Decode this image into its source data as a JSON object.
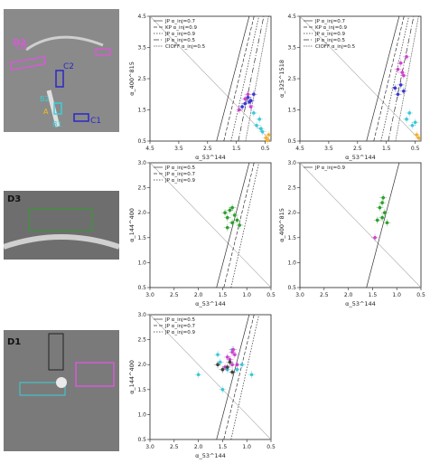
{
  "images": [
    {
      "label": "D2",
      "regions": [
        {
          "text": "D2",
          "color": "#d65ad8"
        },
        {
          "text": "C2",
          "color": "#2a28c8"
        },
        {
          "text": "B2",
          "color": "#3ad0d8"
        },
        {
          "text": "A",
          "color": "#f0c020"
        },
        {
          "text": "B1",
          "color": "#3ad0d8"
        },
        {
          "text": "C1",
          "color": "#2a28c8"
        }
      ]
    },
    {
      "label": "D3"
    },
    {
      "label": "D1"
    }
  ],
  "chart_data": [
    {
      "id": "p1",
      "type": "scatter",
      "xlabel": "α_53^144",
      "ylabel": "α_400^815",
      "xlim": [
        4.5,
        0.3
      ],
      "ylim": [
        4.5,
        0.5
      ],
      "xticks": [
        "4.5",
        "3.5",
        "2.5",
        "1.5",
        "0.5"
      ],
      "yticks": [
        "0.5",
        "1.5",
        "2.5",
        "3.5",
        "4.5"
      ],
      "legend": [
        "JP α_inj=0.7",
        "KP α_inj=0.9",
        "JP α_inj=0.9",
        "JP α_inj=0.5",
        "CIOFF α_inj=0.5"
      ],
      "legend_placement": "top-left",
      "series": [
        {
          "color": "#f0b030",
          "points": [
            [
              0.42,
              0.52
            ],
            [
              0.48,
              0.6
            ],
            [
              0.38,
              0.7
            ]
          ]
        },
        {
          "color": "#3cc8d8",
          "points": [
            [
              0.6,
              0.8
            ],
            [
              0.8,
              1.0
            ],
            [
              0.7,
              1.2
            ],
            [
              0.9,
              1.4
            ],
            [
              0.65,
              0.9
            ]
          ]
        },
        {
          "color": "#3a38c8",
          "points": [
            [
              1.2,
              1.7
            ],
            [
              1.0,
              1.8
            ],
            [
              1.1,
              1.9
            ],
            [
              0.9,
              2.0
            ],
            [
              1.3,
              1.6
            ],
            [
              1.05,
              1.75
            ]
          ]
        },
        {
          "color": "#cc44cc",
          "points": [
            [
              1.4,
              1.5
            ],
            [
              1.1,
              2.0
            ],
            [
              1.2,
              1.85
            ],
            [
              1.0,
              1.6
            ]
          ]
        }
      ]
    },
    {
      "id": "p2",
      "type": "scatter",
      "xlabel": "α_53^144",
      "ylabel": "α_325^1518",
      "xlim": [
        4.5,
        0.3
      ],
      "ylim": [
        4.5,
        0.5
      ],
      "xticks": [
        "4.5",
        "3.5",
        "2.5",
        "1.5",
        "0.5"
      ],
      "yticks": [
        "0.5",
        "1.5",
        "2.5",
        "3.5",
        "4.5"
      ],
      "legend": [
        "JP α_inj=0.7",
        "KP α_inj=0.9",
        "JP α_inj=0.9",
        "JP α_inj=0.5",
        "CIOFF α_inj=0.5"
      ],
      "legend_placement": "top-left",
      "series": [
        {
          "color": "#f0b030",
          "points": [
            [
              0.38,
              0.6
            ],
            [
              0.45,
              0.7
            ]
          ]
        },
        {
          "color": "#3cc8d8",
          "points": [
            [
              0.6,
              1.0
            ],
            [
              0.8,
              1.2
            ],
            [
              0.7,
              1.4
            ],
            [
              0.5,
              1.1
            ]
          ]
        },
        {
          "color": "#3a38c8",
          "points": [
            [
              1.1,
              2.0
            ],
            [
              1.0,
              2.3
            ],
            [
              0.9,
              2.1
            ],
            [
              1.2,
              2.2
            ]
          ]
        },
        {
          "color": "#cc44cc",
          "points": [
            [
              0.9,
              2.6
            ],
            [
              1.0,
              3.0
            ],
            [
              1.1,
              2.8
            ],
            [
              0.8,
              3.2
            ],
            [
              0.95,
              2.7
            ]
          ]
        }
      ]
    },
    {
      "id": "p3",
      "type": "scatter",
      "xlabel": "α_53^144",
      "ylabel": "α_144^400",
      "xlim": [
        3.0,
        0.5
      ],
      "ylim": [
        3.0,
        0.5
      ],
      "xticks": [
        "3.0",
        "2.5",
        "2.0",
        "1.5",
        "1.0",
        "0.5"
      ],
      "yticks": [
        "0.5",
        "1.0",
        "1.5",
        "2.0",
        "2.5",
        "3.0"
      ],
      "legend": [
        "JP α_inj=0.5",
        "JP α_inj=0.7",
        "JP α_inj=0.9"
      ],
      "legend_placement": "top-left",
      "series": [
        {
          "color": "#2e9e2e",
          "points": [
            [
              1.3,
              1.8
            ],
            [
              1.4,
              1.9
            ],
            [
              1.25,
              1.95
            ],
            [
              1.35,
              2.05
            ],
            [
              1.2,
              1.85
            ],
            [
              1.45,
              2.0
            ],
            [
              1.3,
              2.1
            ],
            [
              1.15,
              1.75
            ],
            [
              1.4,
              1.7
            ]
          ]
        }
      ]
    },
    {
      "id": "p4",
      "type": "scatter",
      "xlabel": "α_53^144",
      "ylabel": "α_400^815",
      "xlim": [
        3.0,
        0.5
      ],
      "ylim": [
        3.0,
        0.5
      ],
      "xticks": [
        "3.0",
        "2.5",
        "2.0",
        "1.5",
        "1.0",
        "0.5"
      ],
      "yticks": [
        "0.5",
        "1.0",
        "1.5",
        "2.0",
        "2.5",
        "3.0"
      ],
      "legend": [
        "JP α_inj=0.9"
      ],
      "legend_placement": "top-left",
      "series": [
        {
          "color": "#2e9e2e",
          "points": [
            [
              1.3,
              1.9
            ],
            [
              1.25,
              2.0
            ],
            [
              1.35,
              2.1
            ],
            [
              1.2,
              1.8
            ],
            [
              1.3,
              2.2
            ],
            [
              1.4,
              1.85
            ],
            [
              1.28,
              2.3
            ]
          ]
        },
        {
          "color": "#cc44cc",
          "points": [
            [
              1.45,
              1.5
            ]
          ]
        }
      ]
    },
    {
      "id": "p5",
      "type": "scatter",
      "xlabel": "α_53^144",
      "ylabel": "α_144^400",
      "xlim": [
        3.0,
        0.5
      ],
      "ylim": [
        3.0,
        0.5
      ],
      "xticks": [
        "3.0",
        "2.5",
        "2.0",
        "1.5",
        "1.0",
        "0.5"
      ],
      "yticks": [
        "0.5",
        "1.0",
        "1.5",
        "2.0",
        "2.5",
        "3.0"
      ],
      "legend": [
        "JP α_inj=0.5",
        "JP α_inj=0.7",
        "JP α_inj=0.9"
      ],
      "legend_placement": "top-left",
      "series": [
        {
          "color": "#3cc8d8",
          "points": [
            [
              1.4,
              1.9
            ],
            [
              1.6,
              2.2
            ],
            [
              1.2,
              1.9
            ],
            [
              1.5,
              1.5
            ],
            [
              1.3,
              2.3
            ],
            [
              1.1,
              2.0
            ],
            [
              2.0,
              1.8
            ],
            [
              0.9,
              1.8
            ],
            [
              1.55,
              2.05
            ]
          ]
        },
        {
          "color": "#cc44cc",
          "points": [
            [
              1.3,
              2.0
            ],
            [
              1.35,
              2.1
            ],
            [
              1.25,
              2.2
            ],
            [
              1.4,
              2.15
            ],
            [
              1.2,
              2.0
            ],
            [
              1.3,
              2.25
            ],
            [
              1.45,
              1.95
            ],
            [
              1.28,
              2.3
            ]
          ]
        },
        {
          "color": "#404040",
          "points": [
            [
              1.4,
              1.95
            ],
            [
              1.5,
              1.9
            ],
            [
              1.3,
              1.85
            ],
            [
              1.6,
              2.0
            ],
            [
              1.35,
              2.05
            ]
          ]
        }
      ]
    }
  ]
}
